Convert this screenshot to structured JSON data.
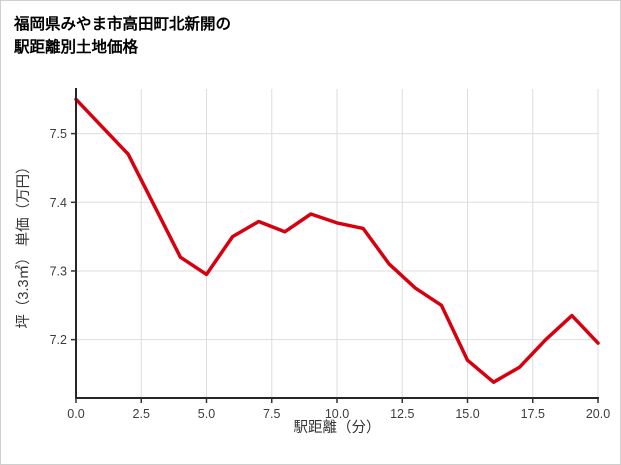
{
  "title": {
    "line1": "福岡県みやま市高田町北新開の",
    "line2": "駅距離別土地価格"
  },
  "chart_data": {
    "type": "line",
    "title": "福岡県みやま市高田町北新開の駅距離別土地価格",
    "xlabel": "駅距離（分）",
    "ylabel": "坪（3.3㎡） 単価（万円）",
    "x": [
      0,
      1,
      2,
      3,
      4,
      5,
      6,
      7,
      8,
      9,
      10,
      11,
      12,
      13,
      14,
      15,
      16,
      17,
      18,
      19,
      20
    ],
    "y": [
      7.55,
      7.51,
      7.47,
      7.395,
      7.32,
      7.295,
      7.35,
      7.372,
      7.357,
      7.383,
      7.37,
      7.362,
      7.31,
      7.275,
      7.25,
      7.17,
      7.138,
      7.16,
      7.2,
      7.235,
      7.195
    ],
    "xlim": [
      0,
      20
    ],
    "ylim": [
      7.115,
      7.565
    ],
    "xticks": [
      0,
      2.5,
      5,
      7.5,
      10,
      12.5,
      15,
      17.5,
      20
    ],
    "xtick_labels": [
      "0.0",
      "2.5",
      "5.0",
      "7.5",
      "10.0",
      "12.5",
      "15.0",
      "17.5",
      "20.0"
    ],
    "yticks": [
      7.2,
      7.3,
      7.4,
      7.5
    ],
    "ytick_labels": [
      "7.2",
      "7.3",
      "7.4",
      "7.5"
    ],
    "grid": true,
    "legend": false,
    "line_color": "#d7000f",
    "line_width": 3.5,
    "grid_color": "#dddddd",
    "axis_color": "#262626"
  }
}
